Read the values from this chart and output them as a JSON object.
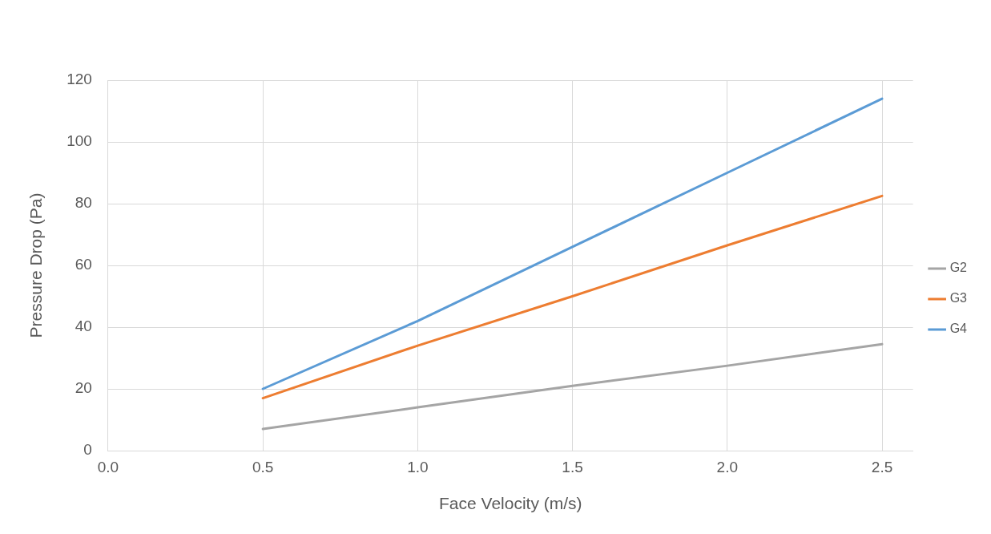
{
  "chart_data": {
    "type": "line",
    "xlabel": "Face Velocity (m/s)",
    "ylabel": "Pressure Drop (Pa)",
    "x": [
      0.5,
      1.0,
      1.5,
      2.0,
      2.5
    ],
    "series": [
      {
        "name": "G2",
        "color": "#a5a5a5",
        "values": [
          7,
          14,
          21,
          27.5,
          34.5
        ]
      },
      {
        "name": "G3",
        "color": "#ed7d31",
        "values": [
          17,
          34,
          50,
          66.5,
          82.5
        ]
      },
      {
        "name": "G4",
        "color": "#5b9bd5",
        "values": [
          20,
          42,
          66,
          90,
          114
        ]
      }
    ],
    "xlim": [
      0,
      2.6
    ],
    "xticks": [
      {
        "value": 0,
        "label": "0.0"
      },
      {
        "value": 0.5,
        "label": "0.5"
      },
      {
        "value": 1,
        "label": "1.0"
      },
      {
        "value": 1.5,
        "label": "1.5"
      },
      {
        "value": 2,
        "label": "2.0"
      },
      {
        "value": 2.5,
        "label": "2.5"
      }
    ],
    "ylim": [
      0,
      120
    ],
    "yticks": [
      0,
      20,
      40,
      60,
      80,
      100,
      120
    ],
    "grid": true,
    "legend": "right",
    "marker": "none",
    "line_style": "solid"
  }
}
